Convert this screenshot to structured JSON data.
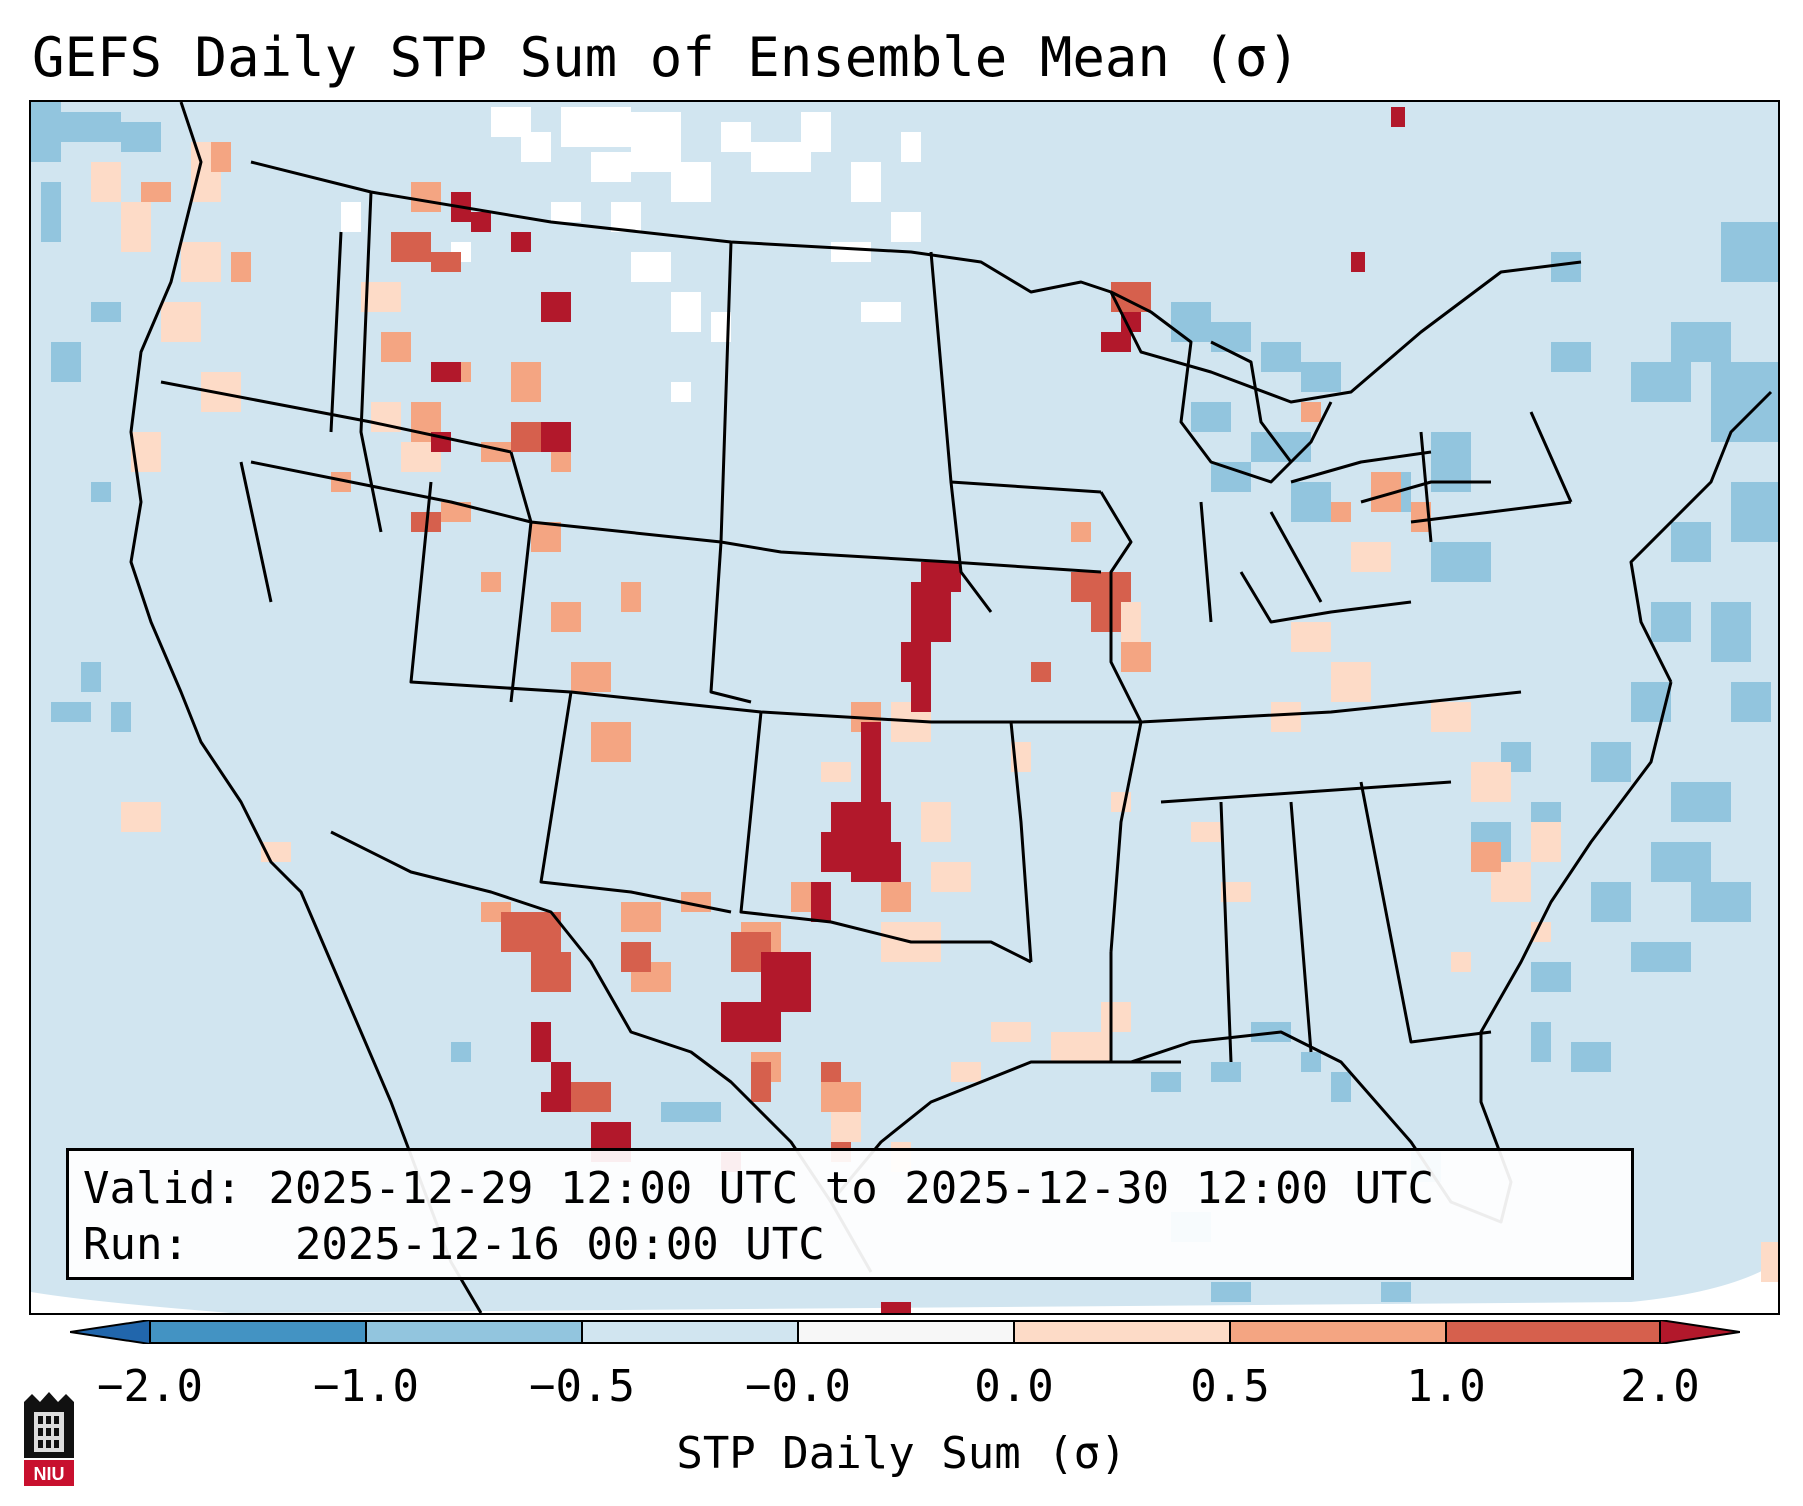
{
  "title": "GEFS Daily STP Sum of Ensemble Mean (σ)",
  "info_box": {
    "valid_label": "Valid:",
    "valid_value": "2025-12-29 12:00 UTC to 2025-12-30 12:00 UTC",
    "run_label": "Run:",
    "run_value": "2025-12-16 00:00 UTC"
  },
  "colorbar": {
    "label": "STP Daily Sum (σ)",
    "ticks": [
      "−2.0",
      "−1.0",
      "−0.5",
      "−0.0",
      "0.0",
      "0.5",
      "1.0",
      "2.0"
    ],
    "colors": {
      "below_min": "#2166ac",
      "bin_neg2_neg1": "#4393c3",
      "bin_neg1_neg05": "#92c5de",
      "bin_neg05_0": "#d1e5f0",
      "bin_zero": "#f7f7f7",
      "bin_0_05": "#fddbc7",
      "bin_05_1": "#f4a582",
      "bin_1_2": "#d6604d",
      "above_max": "#b2182b"
    }
  },
  "map": {
    "background_color": "#d1e5f0",
    "boundary_color": "#000000",
    "ocean_outside_domain": "#ffffff"
  },
  "logo": {
    "text": "NIU"
  }
}
